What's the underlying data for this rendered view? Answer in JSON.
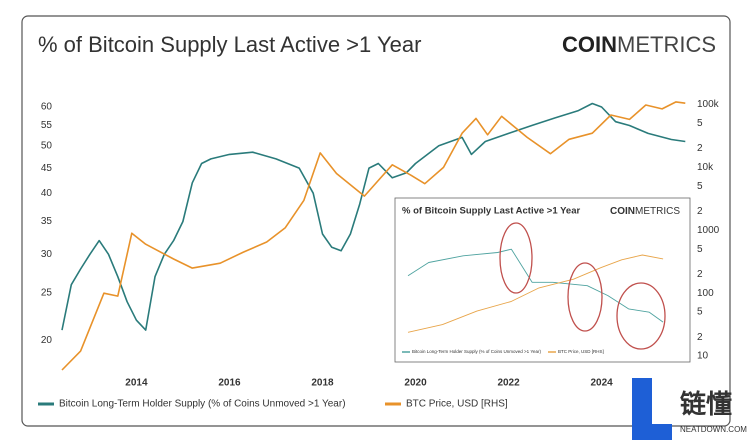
{
  "chart_data": [
    {
      "type": "line",
      "title": "% of Bitcoin Supply Last Active >1 Year",
      "brand": [
        "COIN",
        "METRICS"
      ],
      "xlim": [
        2012.4,
        2025.9
      ],
      "xticks": [
        2014,
        2016,
        2018,
        2020,
        2022,
        2024
      ],
      "ylim": [
        17,
        65
      ],
      "yticks": [
        20,
        25,
        30,
        35,
        40,
        45,
        50,
        55,
        60
      ],
      "ylog": true,
      "y2lim": [
        5,
        170000
      ],
      "y2log": true,
      "y2ticks": [
        10,
        {
          "value": 20,
          "label": "2"
        },
        {
          "value": 50,
          "label": "5"
        },
        100,
        {
          "value": 200,
          "label": "2"
        },
        {
          "value": 500,
          "label": "5"
        },
        1000,
        {
          "value": 2000,
          "label": "2"
        },
        {
          "value": 5000,
          "label": "5"
        },
        {
          "value": 10000,
          "label": "10k"
        },
        {
          "value": 20000,
          "label": "2"
        },
        {
          "value": 50000,
          "label": "5"
        },
        {
          "value": 100000,
          "label": "100k"
        }
      ],
      "series": [
        {
          "name": "Bitcoin Long-Term Holder Supply (% of Coins Unmoved >1 Year)",
          "color": "#2a7b7b",
          "x": [
            2012.4,
            2012.6,
            2012.8,
            2013.0,
            2013.2,
            2013.4,
            2013.6,
            2013.8,
            2014.0,
            2014.2,
            2014.4,
            2014.6,
            2014.8,
            2015.0,
            2015.2,
            2015.4,
            2015.6,
            2016.0,
            2016.5,
            2017.0,
            2017.5,
            2017.8,
            2018.0,
            2018.2,
            2018.4,
            2018.6,
            2018.8,
            2019.0,
            2019.2,
            2019.5,
            2019.8,
            2020.0,
            2020.5,
            2021.0,
            2021.2,
            2021.5,
            2022.0,
            2022.5,
            2023.0,
            2023.5,
            2023.8,
            2024.0,
            2024.3,
            2024.6,
            2025.0,
            2025.5,
            2025.8
          ],
          "values": [
            21,
            26,
            28,
            30,
            32,
            30,
            27,
            24,
            22,
            21,
            27,
            30,
            32,
            35,
            42,
            46,
            47,
            48,
            48.5,
            47,
            45,
            40,
            33,
            31,
            30.5,
            33,
            38,
            45,
            46,
            43,
            44,
            46,
            50,
            52,
            48,
            51,
            53,
            55,
            57,
            59,
            61,
            60,
            56,
            55,
            53,
            51.5,
            51
          ]
        },
        {
          "name": "BTC Price, USD [RHS]",
          "color": "#e8922a",
          "axis": "y2",
          "x": [
            2012.4,
            2012.8,
            2013.3,
            2013.6,
            2013.9,
            2014.2,
            2014.8,
            2015.2,
            2015.8,
            2016.3,
            2016.8,
            2017.2,
            2017.6,
            2017.95,
            2018.3,
            2018.9,
            2019.5,
            2019.9,
            2020.2,
            2020.6,
            2021.0,
            2021.3,
            2021.55,
            2021.85,
            2022.4,
            2022.9,
            2023.3,
            2023.8,
            2024.2,
            2024.6,
            2024.95,
            2025.3,
            2025.6,
            2025.8
          ],
          "values": [
            6,
            12,
            100,
            90,
            900,
            600,
            350,
            250,
            300,
            450,
            650,
            1100,
            3000,
            17000,
            8000,
            3500,
            11000,
            7500,
            5500,
            10000,
            35000,
            60000,
            33000,
            65000,
            30000,
            16500,
            28000,
            35000,
            68000,
            58000,
            98000,
            85000,
            110000,
            105000
          ]
        }
      ]
    },
    {
      "type": "line",
      "title": "% of Bitcoin Supply Last Active >1 Year",
      "brand": [
        "COIN",
        "METRICS"
      ],
      "xlim": [
        2022.0,
        2025.8
      ],
      "ylim": [
        40,
        75
      ],
      "y2lim": [
        10000,
        130000
      ],
      "series": [
        {
          "name": "Bitcoin Long-Term Holder Supply (% of Coins Unmoved >1 Year)",
          "color": "#4fa3a0",
          "x": [
            2022.0,
            2022.3,
            2022.8,
            2023.3,
            2023.5,
            2023.8,
            2024.1,
            2024.6,
            2024.9,
            2025.2,
            2025.5,
            2025.7
          ],
          "values": [
            60,
            64,
            66,
            67,
            68,
            58,
            58,
            57,
            54,
            50,
            49,
            46
          ]
        },
        {
          "name": "BTC Price, USD [RHS]",
          "color": "#e8a54a",
          "axis": "y2",
          "x": [
            2022.0,
            2022.5,
            2023.0,
            2023.5,
            2023.9,
            2024.4,
            2024.8,
            2025.1,
            2025.4,
            2025.7
          ],
          "values": [
            20000,
            28000,
            42000,
            52000,
            66000,
            75000,
            87000,
            95000,
            100000,
            96000
          ]
        }
      ]
    }
  ],
  "watermark": {
    "text": "链懂",
    "sub": "NEATDOWN.COM"
  }
}
